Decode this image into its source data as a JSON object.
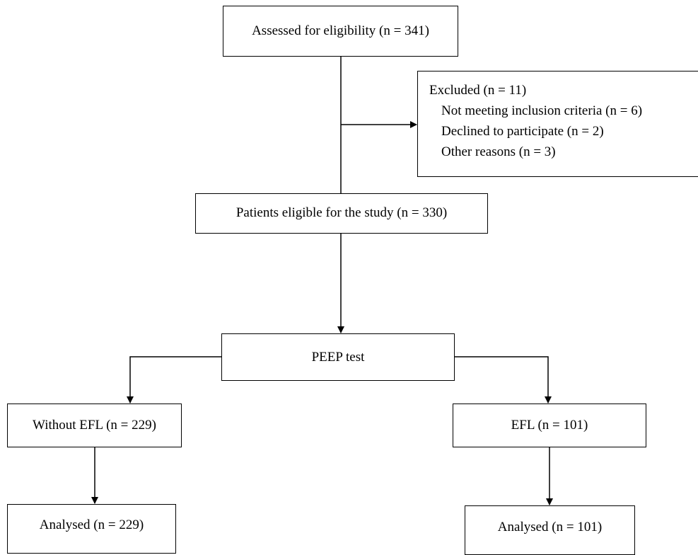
{
  "flowchart": {
    "assessed": "Assessed for eligibility (n = 341)",
    "excluded": {
      "title": "Excluded (n = 11)",
      "items": [
        "Not meeting inclusion criteria (n = 6)",
        "Declined to participate (n = 2)",
        "Other reasons (n = 3)"
      ]
    },
    "eligible": "Patients eligible for the study (n = 330)",
    "peep_test": "PEEP test",
    "without_efl": "Without EFL (n = 229)",
    "efl": "EFL (n = 101)",
    "analysed_without_efl": "Analysed (n = 229)",
    "analysed_efl": "Analysed (n = 101)"
  },
  "colors": {
    "line": "#000000",
    "box_border": "#000000",
    "background": "#ffffff"
  }
}
